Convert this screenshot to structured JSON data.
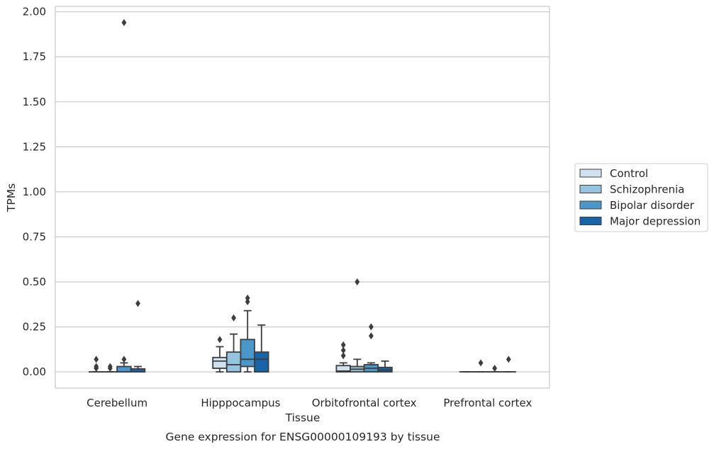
{
  "chart_data": {
    "type": "box",
    "xlabel": "Tissue",
    "ylabel": "TPMs",
    "caption": "Gene expression for ENSG00000109193 by tissue",
    "ylim": [
      -0.09,
      2.03
    ],
    "yticks": [
      "0.00",
      "0.25",
      "0.50",
      "0.75",
      "1.00",
      "1.25",
      "1.50",
      "1.75",
      "2.00"
    ],
    "grid": "horizontal",
    "legend_position": "right",
    "categories": [
      "Cerebellum",
      "Hipppocampus",
      "Orbitofrontal cortex",
      "Prefrontal cortex"
    ],
    "series": [
      {
        "name": "Control",
        "color": "#d0e1f2",
        "boxes": [
          {
            "q1": 0,
            "median": 0,
            "q3": 0,
            "whisker_low": 0,
            "whisker_high": 0,
            "outliers": [
              0.02,
              0.03,
              0.07
            ]
          },
          {
            "q1": 0.02,
            "median": 0.06,
            "q3": 0.08,
            "whisker_low": 0,
            "whisker_high": 0.14,
            "outliers": [
              0.18
            ]
          },
          {
            "q1": 0,
            "median": 0.005,
            "q3": 0.035,
            "whisker_low": 0,
            "whisker_high": 0.05,
            "outliers": [
              0.09,
              0.12,
              0.15
            ]
          },
          {
            "q1": 0,
            "median": 0,
            "q3": 0,
            "whisker_low": 0,
            "whisker_high": 0,
            "outliers": []
          }
        ]
      },
      {
        "name": "Schizophrenia",
        "color": "#94c4df",
        "boxes": [
          {
            "q1": 0,
            "median": 0,
            "q3": 0,
            "whisker_low": 0,
            "whisker_high": 0,
            "outliers": [
              0.02,
              0.03
            ]
          },
          {
            "q1": 0,
            "median": 0.04,
            "q3": 0.11,
            "whisker_low": 0,
            "whisker_high": 0.21,
            "outliers": [
              0.3
            ]
          },
          {
            "q1": 0,
            "median": 0.015,
            "q3": 0.03,
            "whisker_low": 0,
            "whisker_high": 0.07,
            "outliers": [
              0.5
            ]
          },
          {
            "q1": 0,
            "median": 0,
            "q3": 0,
            "whisker_low": 0,
            "whisker_high": 0,
            "outliers": [
              0.05
            ]
          }
        ]
      },
      {
        "name": "Bipolar disorder",
        "color": "#4a98c9",
        "boxes": [
          {
            "q1": 0,
            "median": 0,
            "q3": 0.03,
            "whisker_low": 0,
            "whisker_high": 0.05,
            "outliers": [
              0.07,
              1.94
            ]
          },
          {
            "q1": 0.03,
            "median": 0.07,
            "q3": 0.18,
            "whisker_low": 0,
            "whisker_high": 0.34,
            "outliers": [
              0.39,
              0.41
            ]
          },
          {
            "q1": 0,
            "median": 0.02,
            "q3": 0.04,
            "whisker_low": 0,
            "whisker_high": 0.05,
            "outliers": [
              0.2,
              0.25
            ]
          },
          {
            "q1": 0,
            "median": 0,
            "q3": 0,
            "whisker_low": 0,
            "whisker_high": 0,
            "outliers": [
              0.02
            ]
          }
        ]
      },
      {
        "name": "Major depression",
        "color": "#1764ab",
        "boxes": [
          {
            "q1": 0,
            "median": 0,
            "q3": 0.017,
            "whisker_low": 0,
            "whisker_high": 0.03,
            "outliers": [
              0.38
            ]
          },
          {
            "q1": 0,
            "median": 0.07,
            "q3": 0.11,
            "whisker_low": 0,
            "whisker_high": 0.26,
            "outliers": []
          },
          {
            "q1": 0,
            "median": 0.01,
            "q3": 0.025,
            "whisker_low": 0,
            "whisker_high": 0.06,
            "outliers": []
          },
          {
            "q1": 0,
            "median": 0,
            "q3": 0,
            "whisker_low": 0,
            "whisker_high": 0,
            "outliers": [
              0.07
            ]
          }
        ]
      }
    ]
  }
}
